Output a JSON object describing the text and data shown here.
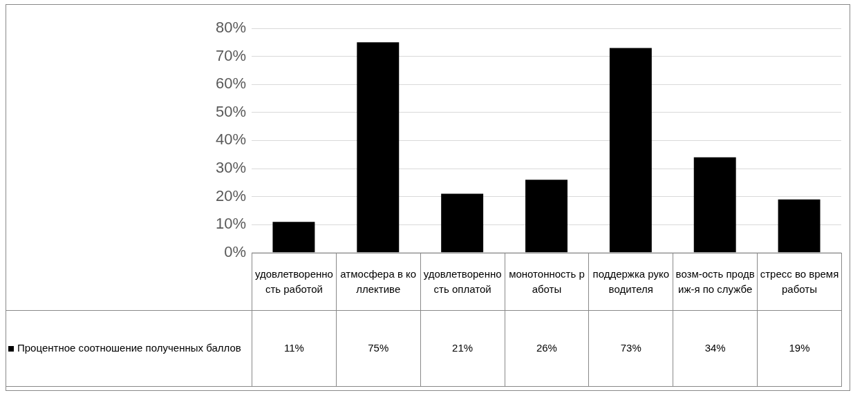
{
  "chart_data": {
    "type": "bar",
    "categories": [
      "удовлетворенность работой",
      "атмосфера в коллективе",
      "удовлетворенность оплатой",
      "монотонность работы",
      "поддержка руководителя",
      "возм-ость продвиж-я по службе",
      "стресс во время работы"
    ],
    "series": [
      {
        "name": "Процентное соотношение полученных баллов",
        "color": "#000000",
        "values": [
          11,
          75,
          21,
          26,
          73,
          34,
          19
        ],
        "value_labels": [
          "11%",
          "75%",
          "21%",
          "26%",
          "73%",
          "34%",
          "19%"
        ]
      }
    ],
    "ylim": [
      0,
      80
    ],
    "yticks": [
      {
        "value": 0,
        "label": "0%"
      },
      {
        "value": 10,
        "label": "10%"
      },
      {
        "value": 20,
        "label": "20%"
      },
      {
        "value": 30,
        "label": "30%"
      },
      {
        "value": 40,
        "label": "40%"
      },
      {
        "value": 50,
        "label": "50%"
      },
      {
        "value": 60,
        "label": "60%"
      },
      {
        "value": 70,
        "label": "70%"
      },
      {
        "value": 80,
        "label": "80%"
      }
    ],
    "grid": "y",
    "legend": "bottom left"
  }
}
